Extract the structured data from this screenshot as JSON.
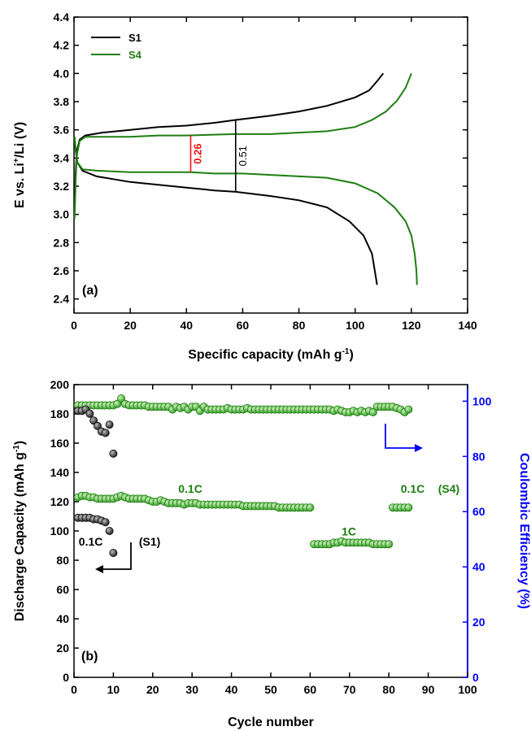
{
  "colors": {
    "s1": "#000000",
    "s4": "#1e7d12",
    "marker_s4": "#3aa32a",
    "marker_s1": "#222222",
    "ce_axis": "#0000ff",
    "red_annotation": "#ee1111",
    "axis": "#000000"
  },
  "chart_data": [
    {
      "type": "line",
      "panel_label": "(a)",
      "xlabel": "Specific capacity (mAh g",
      "xlabel_sup": "-1",
      "xlabel_end": ")",
      "ylabel_pre": "E vs. Li",
      "ylabel_sup": "+",
      "ylabel_post": "/Li (V)",
      "xlim": [
        0,
        140
      ],
      "ylim": [
        2.3,
        4.4
      ],
      "xticks": [
        0,
        20,
        40,
        60,
        80,
        100,
        120,
        140
      ],
      "yticks": [
        2.4,
        2.6,
        2.8,
        3.0,
        3.2,
        3.4,
        3.6,
        3.8,
        4.0,
        4.2,
        4.4
      ],
      "legend_position": "top-left",
      "series": [
        {
          "name": "S1",
          "charge": [
            [
              0.2,
              3.05
            ],
            [
              0.6,
              3.3
            ],
            [
              1.0,
              3.45
            ],
            [
              2.0,
              3.53
            ],
            [
              4.0,
              3.56
            ],
            [
              10,
              3.58
            ],
            [
              20,
              3.6
            ],
            [
              30,
              3.62
            ],
            [
              40,
              3.63
            ],
            [
              50,
              3.65
            ],
            [
              57.5,
              3.67
            ],
            [
              70,
              3.7
            ],
            [
              80,
              3.73
            ],
            [
              90,
              3.77
            ],
            [
              100,
              3.83
            ],
            [
              105,
              3.88
            ],
            [
              108,
              3.95
            ],
            [
              110,
              4.0
            ]
          ],
          "discharge": [
            [
              0.2,
              3.55
            ],
            [
              0.6,
              3.45
            ],
            [
              1.2,
              3.37
            ],
            [
              3,
              3.31
            ],
            [
              8,
              3.27
            ],
            [
              20,
              3.23
            ],
            [
              30,
              3.21
            ],
            [
              40,
              3.19
            ],
            [
              50,
              3.17
            ],
            [
              57.5,
              3.16
            ],
            [
              70,
              3.13
            ],
            [
              80,
              3.1
            ],
            [
              90,
              3.05
            ],
            [
              98,
              2.95
            ],
            [
              103,
              2.85
            ],
            [
              106,
              2.72
            ],
            [
              107,
              2.6
            ],
            [
              107.8,
              2.5
            ]
          ]
        },
        {
          "name": "S4",
          "charge": [
            [
              0.2,
              2.97
            ],
            [
              0.6,
              3.25
            ],
            [
              1.0,
              3.42
            ],
            [
              2.0,
              3.52
            ],
            [
              4.0,
              3.55
            ],
            [
              10,
              3.55
            ],
            [
              20,
              3.55
            ],
            [
              30,
              3.56
            ],
            [
              40,
              3.56
            ],
            [
              57.5,
              3.57
            ],
            [
              70,
              3.57
            ],
            [
              80,
              3.58
            ],
            [
              90,
              3.59
            ],
            [
              100,
              3.62
            ],
            [
              106,
              3.67
            ],
            [
              111,
              3.73
            ],
            [
              115,
              3.81
            ],
            [
              118,
              3.9
            ],
            [
              120,
              4.0
            ]
          ],
          "discharge": [
            [
              0.2,
              3.55
            ],
            [
              0.6,
              3.45
            ],
            [
              1.2,
              3.37
            ],
            [
              3,
              3.32
            ],
            [
              8,
              3.31
            ],
            [
              20,
              3.3
            ],
            [
              30,
              3.3
            ],
            [
              41.5,
              3.3
            ],
            [
              50,
              3.29
            ],
            [
              60,
              3.29
            ],
            [
              70,
              3.28
            ],
            [
              80,
              3.27
            ],
            [
              90,
              3.26
            ],
            [
              100,
              3.22
            ],
            [
              108,
              3.15
            ],
            [
              114,
              3.05
            ],
            [
              118,
              2.95
            ],
            [
              120,
              2.85
            ],
            [
              121.2,
              2.72
            ],
            [
              121.8,
              2.6
            ],
            [
              122,
              2.5
            ]
          ]
        }
      ],
      "annotations": [
        {
          "text": "0.26",
          "x": 41.5,
          "y_from": 3.3,
          "y_to": 3.56,
          "color": "red"
        },
        {
          "text": "0.51",
          "x": 57.5,
          "y_from": 3.16,
          "y_to": 3.67,
          "color": "black"
        }
      ]
    },
    {
      "type": "scatter",
      "panel_label": "(b)",
      "xlabel": "Cycle number",
      "ylabel_pre": "Discharge Capacity (mAh g",
      "ylabel_sup": "-1",
      "ylabel_post": ")",
      "y2label": "Coulombic Efficiency (%)",
      "xlim": [
        0,
        100
      ],
      "ylim": [
        0,
        200
      ],
      "y2lim": [
        0,
        106
      ],
      "xticks": [
        0,
        10,
        20,
        30,
        40,
        50,
        60,
        70,
        80,
        90,
        100
      ],
      "yticks": [
        0,
        20,
        40,
        60,
        80,
        100,
        120,
        140,
        160,
        180,
        200
      ],
      "y2ticks": [
        0,
        20,
        40,
        60,
        80,
        100
      ],
      "series": [
        {
          "name": "S1 capacity",
          "x": [
            1,
            2,
            3,
            4,
            5,
            6,
            7,
            8,
            9,
            10
          ],
          "y": [
            109,
            109,
            109,
            109,
            108,
            108,
            107,
            106,
            100,
            85
          ]
        },
        {
          "name": "S1 CE",
          "x": [
            1,
            2,
            3,
            4,
            5,
            6,
            7,
            8,
            9,
            10
          ],
          "y": [
            96.5,
            96.5,
            97,
            95.5,
            93,
            91,
            89,
            88.5,
            91.5,
            81
          ]
        },
        {
          "name": "S4 capacity",
          "x": [
            1,
            2,
            3,
            4,
            5,
            6,
            7,
            8,
            9,
            10,
            11,
            12,
            13,
            14,
            15,
            16,
            17,
            18,
            19,
            20,
            21,
            22,
            23,
            24,
            25,
            26,
            27,
            28,
            29,
            30,
            31,
            32,
            33,
            34,
            35,
            36,
            37,
            38,
            39,
            40,
            41,
            42,
            43,
            44,
            45,
            46,
            47,
            48,
            49,
            50,
            51,
            52,
            53,
            54,
            55,
            56,
            57,
            58,
            59,
            60,
            61,
            62,
            63,
            64,
            65,
            66,
            67,
            68,
            69,
            70,
            71,
            72,
            73,
            74,
            75,
            76,
            77,
            78,
            79,
            80,
            81,
            82,
            83,
            84,
            85
          ],
          "y": [
            123,
            124,
            124,
            123,
            123,
            122,
            122,
            122,
            122,
            122,
            123,
            124,
            123,
            122,
            122,
            122,
            122,
            122,
            121,
            120,
            120,
            121,
            120,
            119,
            119,
            119,
            119,
            118,
            119,
            119,
            119,
            118,
            118,
            118,
            118,
            118,
            118,
            118,
            118,
            118,
            118,
            118,
            117,
            117,
            117,
            117,
            117,
            117,
            117,
            117,
            117,
            116,
            116,
            116,
            116,
            116,
            116,
            116,
            116,
            116,
            91,
            91,
            91,
            91,
            91,
            92,
            92,
            93,
            92,
            92,
            92,
            92,
            92,
            92,
            92,
            91,
            91,
            91,
            91,
            91,
            116,
            116,
            116,
            116,
            116
          ]
        },
        {
          "name": "S4 CE",
          "x": [
            1,
            2,
            3,
            4,
            5,
            6,
            7,
            8,
            9,
            10,
            11,
            12,
            13,
            14,
            15,
            16,
            17,
            18,
            19,
            20,
            21,
            22,
            23,
            24,
            25,
            26,
            27,
            28,
            29,
            30,
            31,
            32,
            33,
            34,
            35,
            36,
            37,
            38,
            39,
            40,
            41,
            42,
            43,
            44,
            45,
            46,
            47,
            48,
            49,
            50,
            51,
            52,
            53,
            54,
            55,
            56,
            57,
            58,
            59,
            60,
            61,
            62,
            63,
            64,
            65,
            66,
            67,
            68,
            69,
            70,
            71,
            72,
            73,
            74,
            75,
            76,
            77,
            78,
            79,
            80,
            81,
            82,
            83,
            84,
            85
          ],
          "y": [
            98.5,
            98.5,
            98.5,
            98.5,
            98.5,
            98.5,
            98.5,
            98.5,
            98.5,
            98.5,
            99,
            101,
            99,
            98.5,
            98.5,
            98.5,
            98.5,
            98.5,
            98,
            98,
            98,
            98,
            98,
            98,
            97,
            98,
            97.5,
            98,
            97,
            98,
            98,
            96.5,
            98,
            97,
            97,
            97,
            97,
            97,
            97.5,
            97,
            97,
            97,
            97,
            97.5,
            97,
            97,
            97,
            97,
            97,
            97,
            97,
            97,
            97,
            97,
            97,
            97,
            97,
            97,
            97,
            97,
            97,
            97,
            97,
            97,
            97,
            96.5,
            97,
            96.5,
            96,
            96,
            96.5,
            96,
            96.5,
            96,
            96.5,
            96,
            98,
            98,
            98,
            98,
            98,
            97.5,
            97,
            96,
            97
          ]
        }
      ],
      "annotations": [
        {
          "text": "0.1C",
          "x": 1.2,
          "y": 90
        },
        {
          "text": "(S1)",
          "x": 16.5,
          "y": 90
        },
        {
          "text": "0.1C",
          "x": 26.5,
          "y": 126
        },
        {
          "text": "1C",
          "x": 68,
          "y": 97
        },
        {
          "text": "0.1C",
          "x": 83,
          "y": 126
        },
        {
          "text": "(S4)",
          "x": 92.5,
          "y": 126
        }
      ]
    }
  ]
}
